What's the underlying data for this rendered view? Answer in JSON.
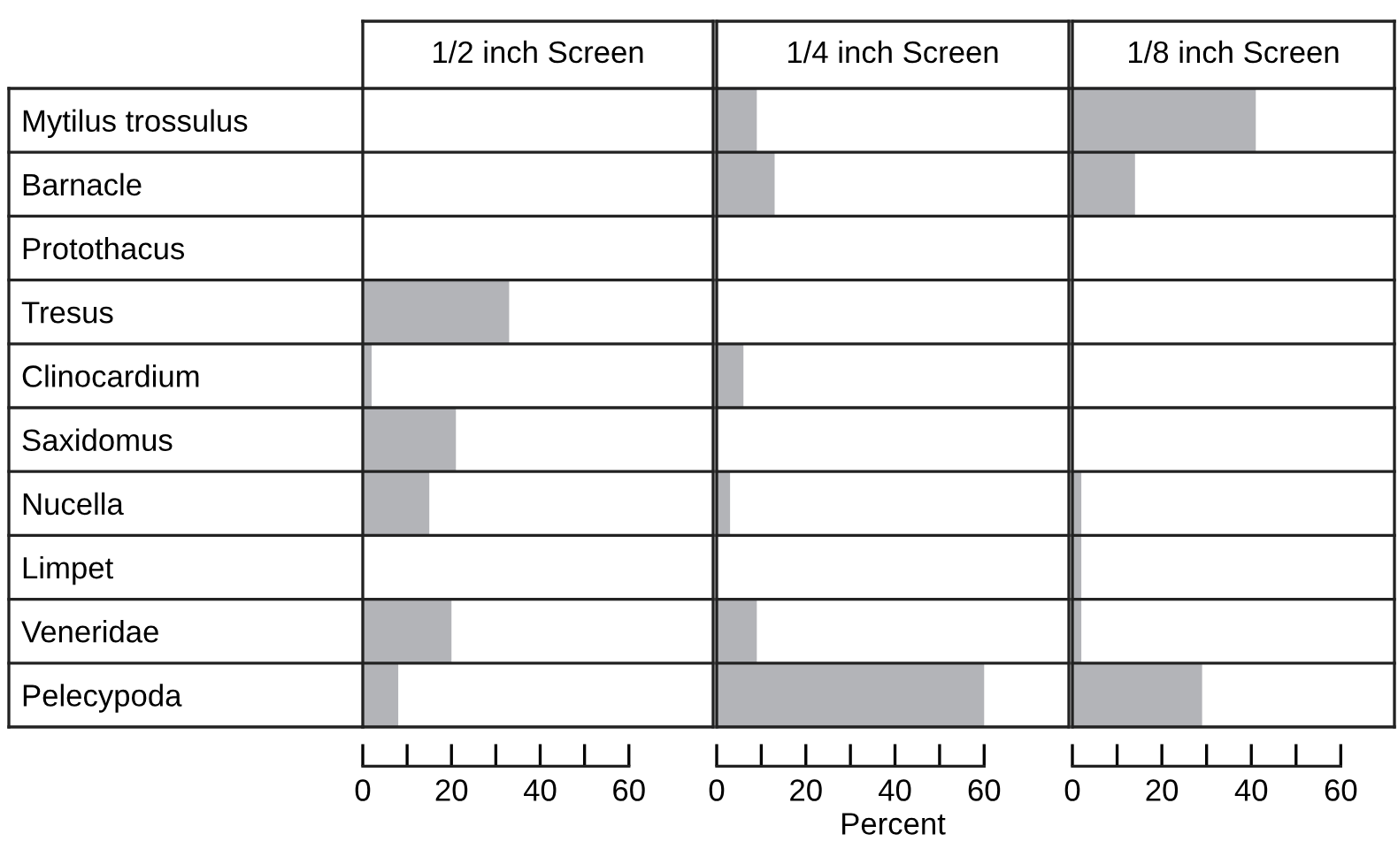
{
  "chart_data": [
    {
      "type": "bar",
      "orientation": "horizontal",
      "title": "1/2 inch Screen",
      "categories": [
        "Mytilus trossulus",
        "Barnacle",
        "Protothacus",
        "Tresus",
        "Clinocardium",
        "Saxidomus",
        "Nucella",
        "Limpet",
        "Veneridae",
        "Pelecypoda"
      ],
      "values": [
        0,
        0,
        0,
        33,
        2,
        21,
        15,
        0,
        20,
        8
      ],
      "color": "#b3b4b8",
      "xlim": [
        0,
        79
      ],
      "xticks": [
        0,
        {
          "value": 10,
          "label": null
        },
        20,
        {
          "value": 30,
          "label": null
        },
        40,
        {
          "value": 50,
          "label": null
        },
        60
      ]
    },
    {
      "type": "bar",
      "orientation": "horizontal",
      "title": "1/4 inch Screen",
      "xlabel": "Percent",
      "categories": [
        "Mytilus trossulus",
        "Barnacle",
        "Protothacus",
        "Tresus",
        "Clinocardium",
        "Saxidomus",
        "Nucella",
        "Limpet",
        "Veneridae",
        "Pelecypoda"
      ],
      "values": [
        9,
        13,
        0,
        0,
        6,
        0,
        3,
        0,
        9,
        60
      ],
      "color": "#b3b4b8",
      "xlim": [
        0,
        79
      ],
      "xticks": [
        0,
        {
          "value": 10,
          "label": null
        },
        20,
        {
          "value": 30,
          "label": null
        },
        40,
        {
          "value": 50,
          "label": null
        },
        60
      ],
      "tick_labels": "x"
    },
    {
      "type": "bar",
      "orientation": "horizontal",
      "title": "1/8 inch Screen",
      "categories": [
        "Mytilus trossulus",
        "Barnacle",
        "Protothacus",
        "Tresus",
        "Clinocardium",
        "Saxidomus",
        "Nucella",
        "Limpet",
        "Veneridae",
        "Pelecypoda"
      ],
      "values": [
        41,
        14,
        0,
        0,
        0,
        0,
        2,
        2,
        2,
        29
      ],
      "color": "#b3b4b8",
      "xlim": [
        0,
        72
      ],
      "xticks": [
        0,
        {
          "value": 10,
          "label": null
        },
        20,
        {
          "value": 30,
          "label": null
        },
        40,
        {
          "value": 50,
          "label": null
        },
        60
      ],
      "tick_labels": "x"
    }
  ]
}
